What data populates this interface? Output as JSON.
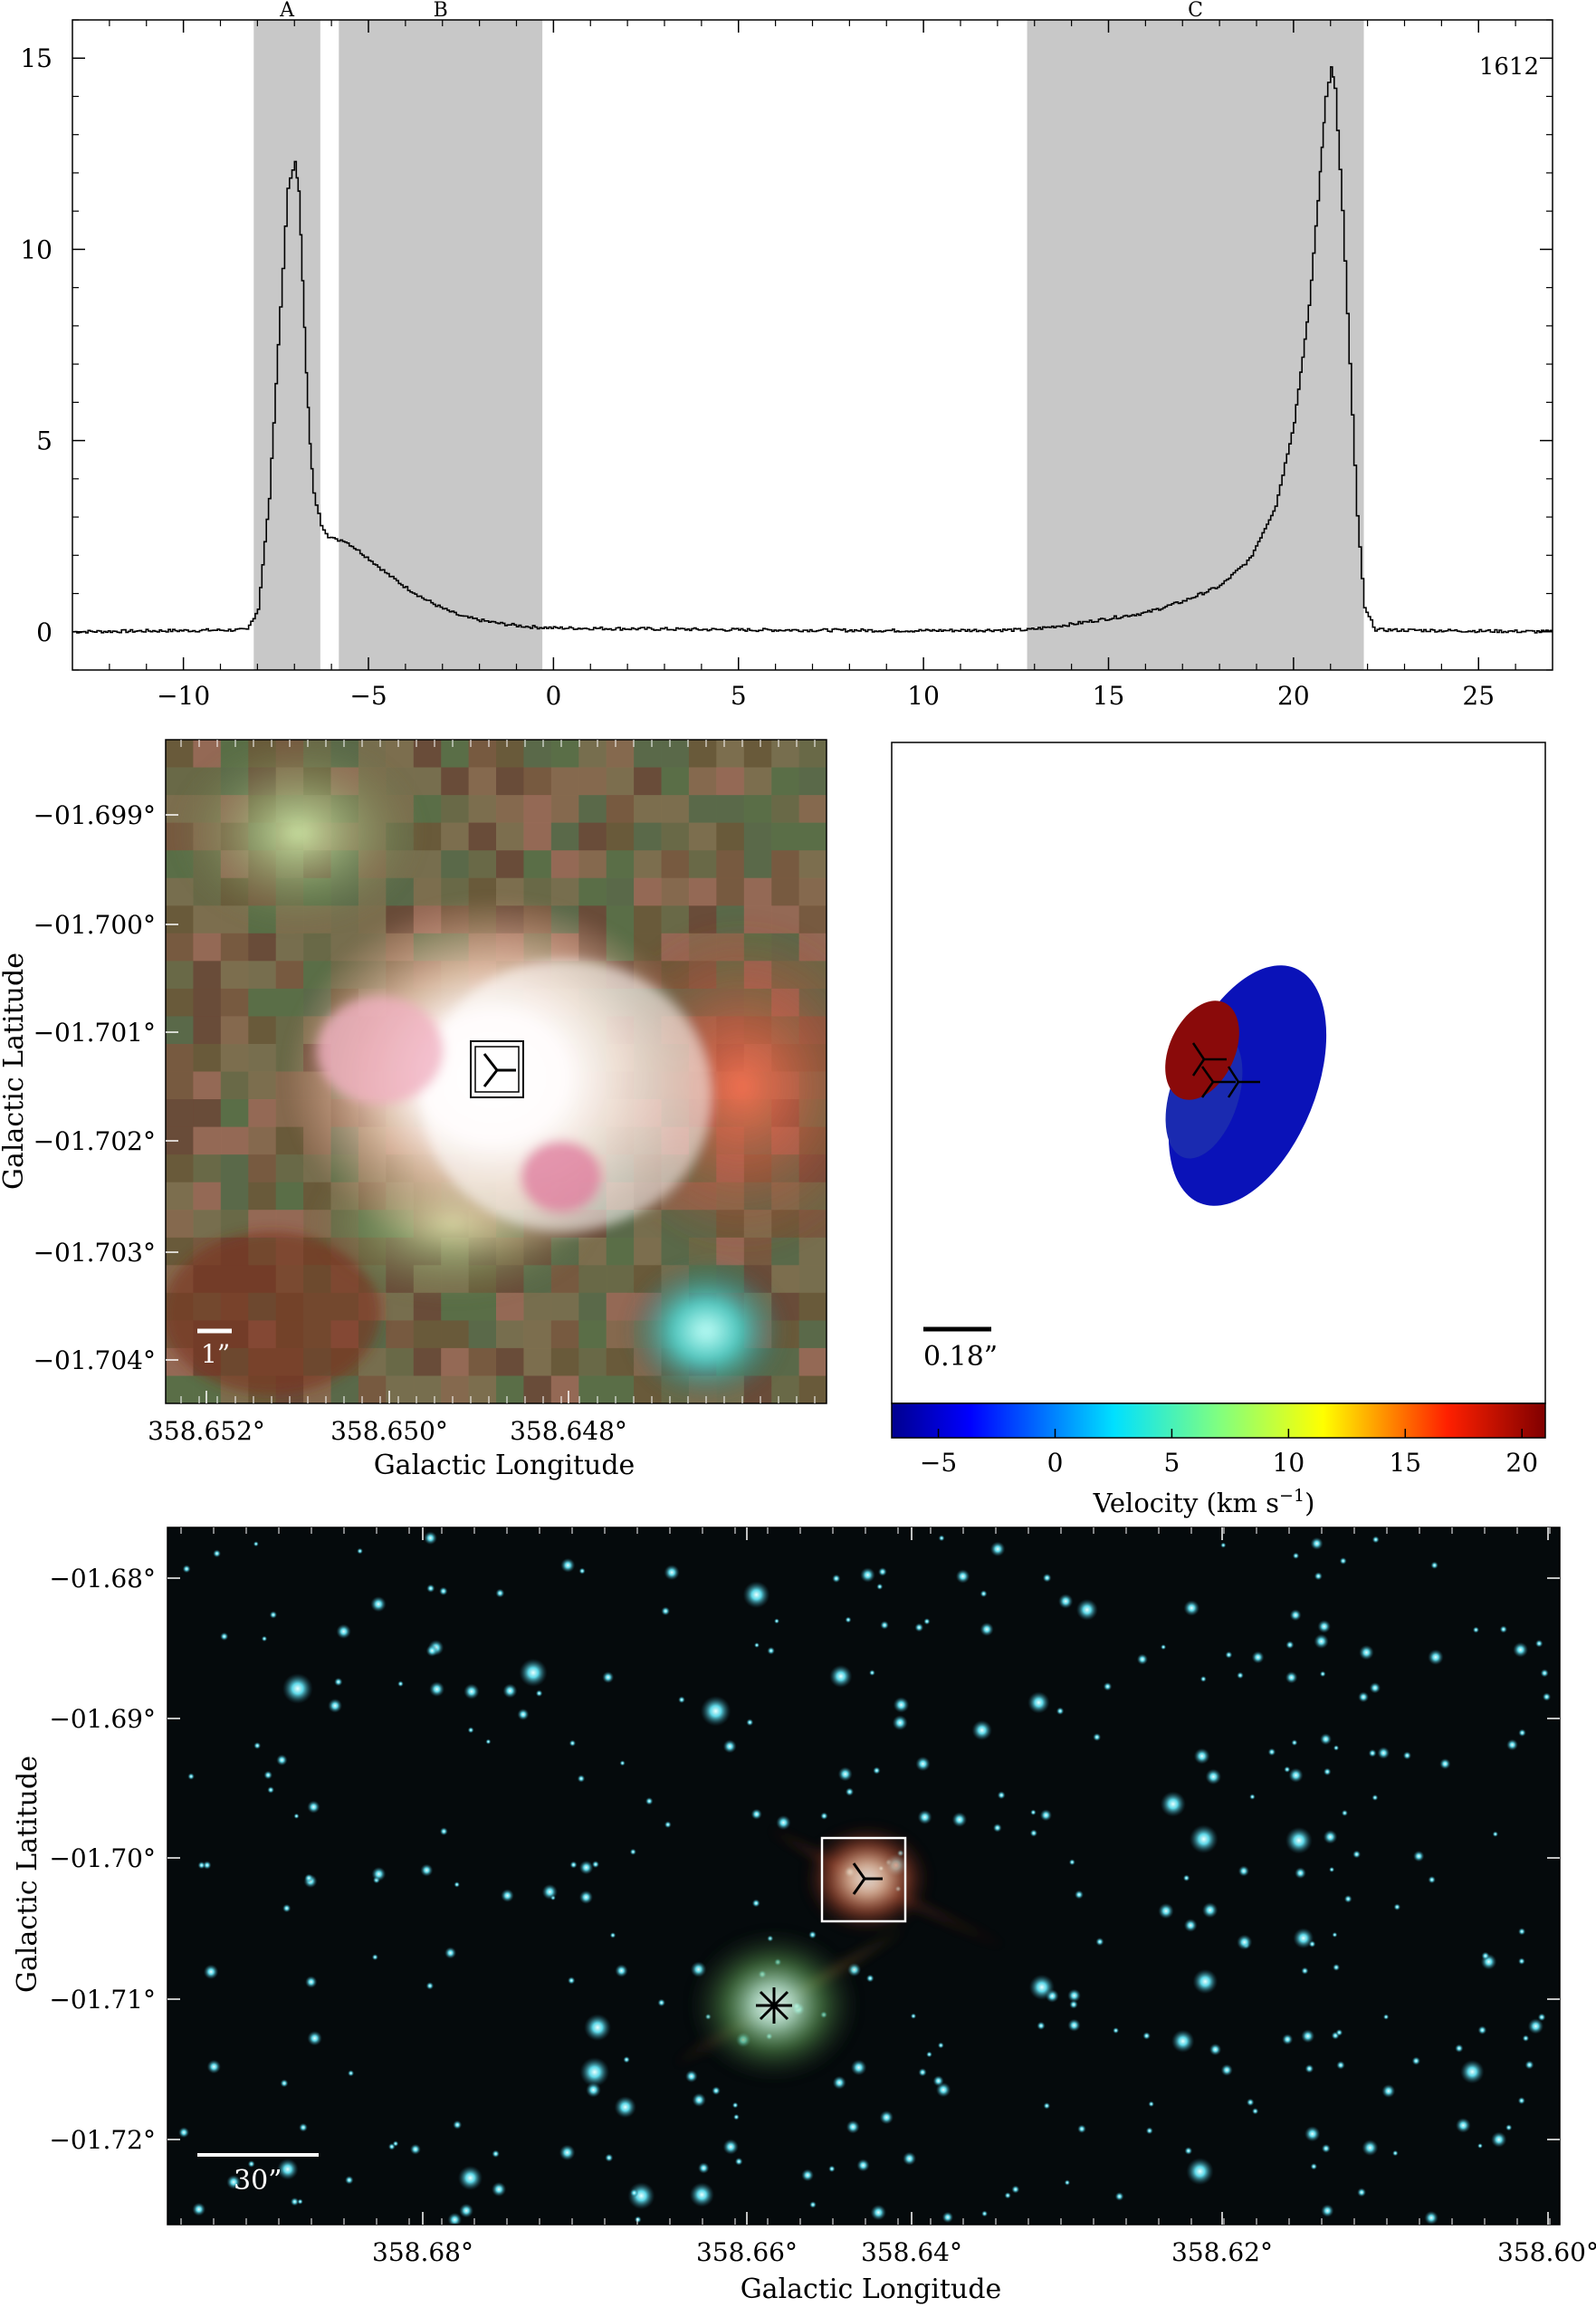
{
  "chart_data": [
    {
      "type": "line",
      "label": "1612",
      "shaded_regions": [
        {
          "name": "A",
          "x": [
            -8.1,
            -6.3
          ]
        },
        {
          "name": "B",
          "x": [
            -5.8,
            -0.3
          ]
        },
        {
          "name": "C",
          "x": [
            12.8,
            21.9
          ]
        }
      ],
      "xlim": [
        -13,
        27
      ],
      "ylim": [
        -1,
        16
      ],
      "xticks": [
        "-10",
        "-5",
        "0",
        "5",
        "10",
        "15",
        "20",
        "25"
      ],
      "yticks": [
        "0",
        "5",
        "10",
        "15"
      ],
      "x": [
        -13,
        -8.3,
        -8.0,
        -7.7,
        -7.4,
        -7.2,
        -7.0,
        -6.9,
        -6.8,
        -6.7,
        -6.6,
        -6.5,
        -6.3,
        -6.1,
        -5.9,
        -5.7,
        -5.4,
        -5.0,
        -4.5,
        -4.0,
        -3.5,
        -3.0,
        -2.5,
        -2.0,
        -1.5,
        -1.0,
        -0.5,
        0,
        5,
        10,
        12.8,
        14,
        16,
        17,
        18,
        18.8,
        19.5,
        20.0,
        20.4,
        20.7,
        20.85,
        21.0,
        21.1,
        21.3,
        21.5,
        21.7,
        21.9,
        22.2,
        27
      ],
      "values": [
        0.0,
        0.05,
        0.6,
        3.5,
        8.5,
        11.6,
        12.3,
        11.5,
        9.2,
        6.8,
        4.9,
        3.6,
        2.8,
        2.5,
        2.4,
        2.4,
        2.2,
        1.9,
        1.5,
        1.15,
        0.85,
        0.6,
        0.4,
        0.3,
        0.22,
        0.16,
        0.12,
        0.1,
        0.05,
        0.03,
        0.05,
        0.2,
        0.5,
        0.8,
        1.2,
        1.9,
        3.3,
        5.5,
        8.5,
        12.0,
        14.0,
        14.8,
        14.2,
        11.0,
        7.0,
        3.0,
        0.6,
        0.05,
        0.0
      ]
    },
    {
      "type": "image",
      "xticks": [
        "358.652°",
        "358.650°",
        "358.648°"
      ],
      "yticks": [
        "−01.699°",
        "−01.700°",
        "−01.701°",
        "−01.702°",
        "−01.703°",
        "−01.704°"
      ],
      "xlabel": "Galactic Longitude",
      "ylabel": "Galactic Latitude",
      "scalebar": "1”"
    },
    {
      "type": "scatter",
      "scalebar": "0.18”",
      "colorbar_ticks": [
        "−5",
        "0",
        "5",
        "10",
        "15",
        "20"
      ],
      "colorbar_label": "Velocity (km s",
      "colorbar_label_sup": "−1",
      "colorbar_label_end": ")",
      "colorbar_range": [
        -7,
        21
      ],
      "spots": [
        {
          "velocity": -6.8,
          "color": "#0a12b8"
        },
        {
          "velocity": -5.0,
          "color": "#0a12b8"
        },
        {
          "velocity": 21.0,
          "color": "#8a0a0a"
        }
      ]
    },
    {
      "type": "image",
      "xticks": [
        "358.68°",
        "358.66°",
        "358.64°",
        "358.62°",
        "358.60°"
      ],
      "yticks": [
        "−01.68°",
        "−01.69°",
        "−01.70°",
        "−01.71°",
        "−01.72°"
      ],
      "xlabel": "Galactic Longitude",
      "ylabel": "Galactic Latitude",
      "scalebar": "30”"
    }
  ],
  "colors": {
    "shade": "#c8c8c8",
    "redspot": "#8a0a0a",
    "bluespot": "#0a12b8",
    "star": "#5ed8e8"
  }
}
